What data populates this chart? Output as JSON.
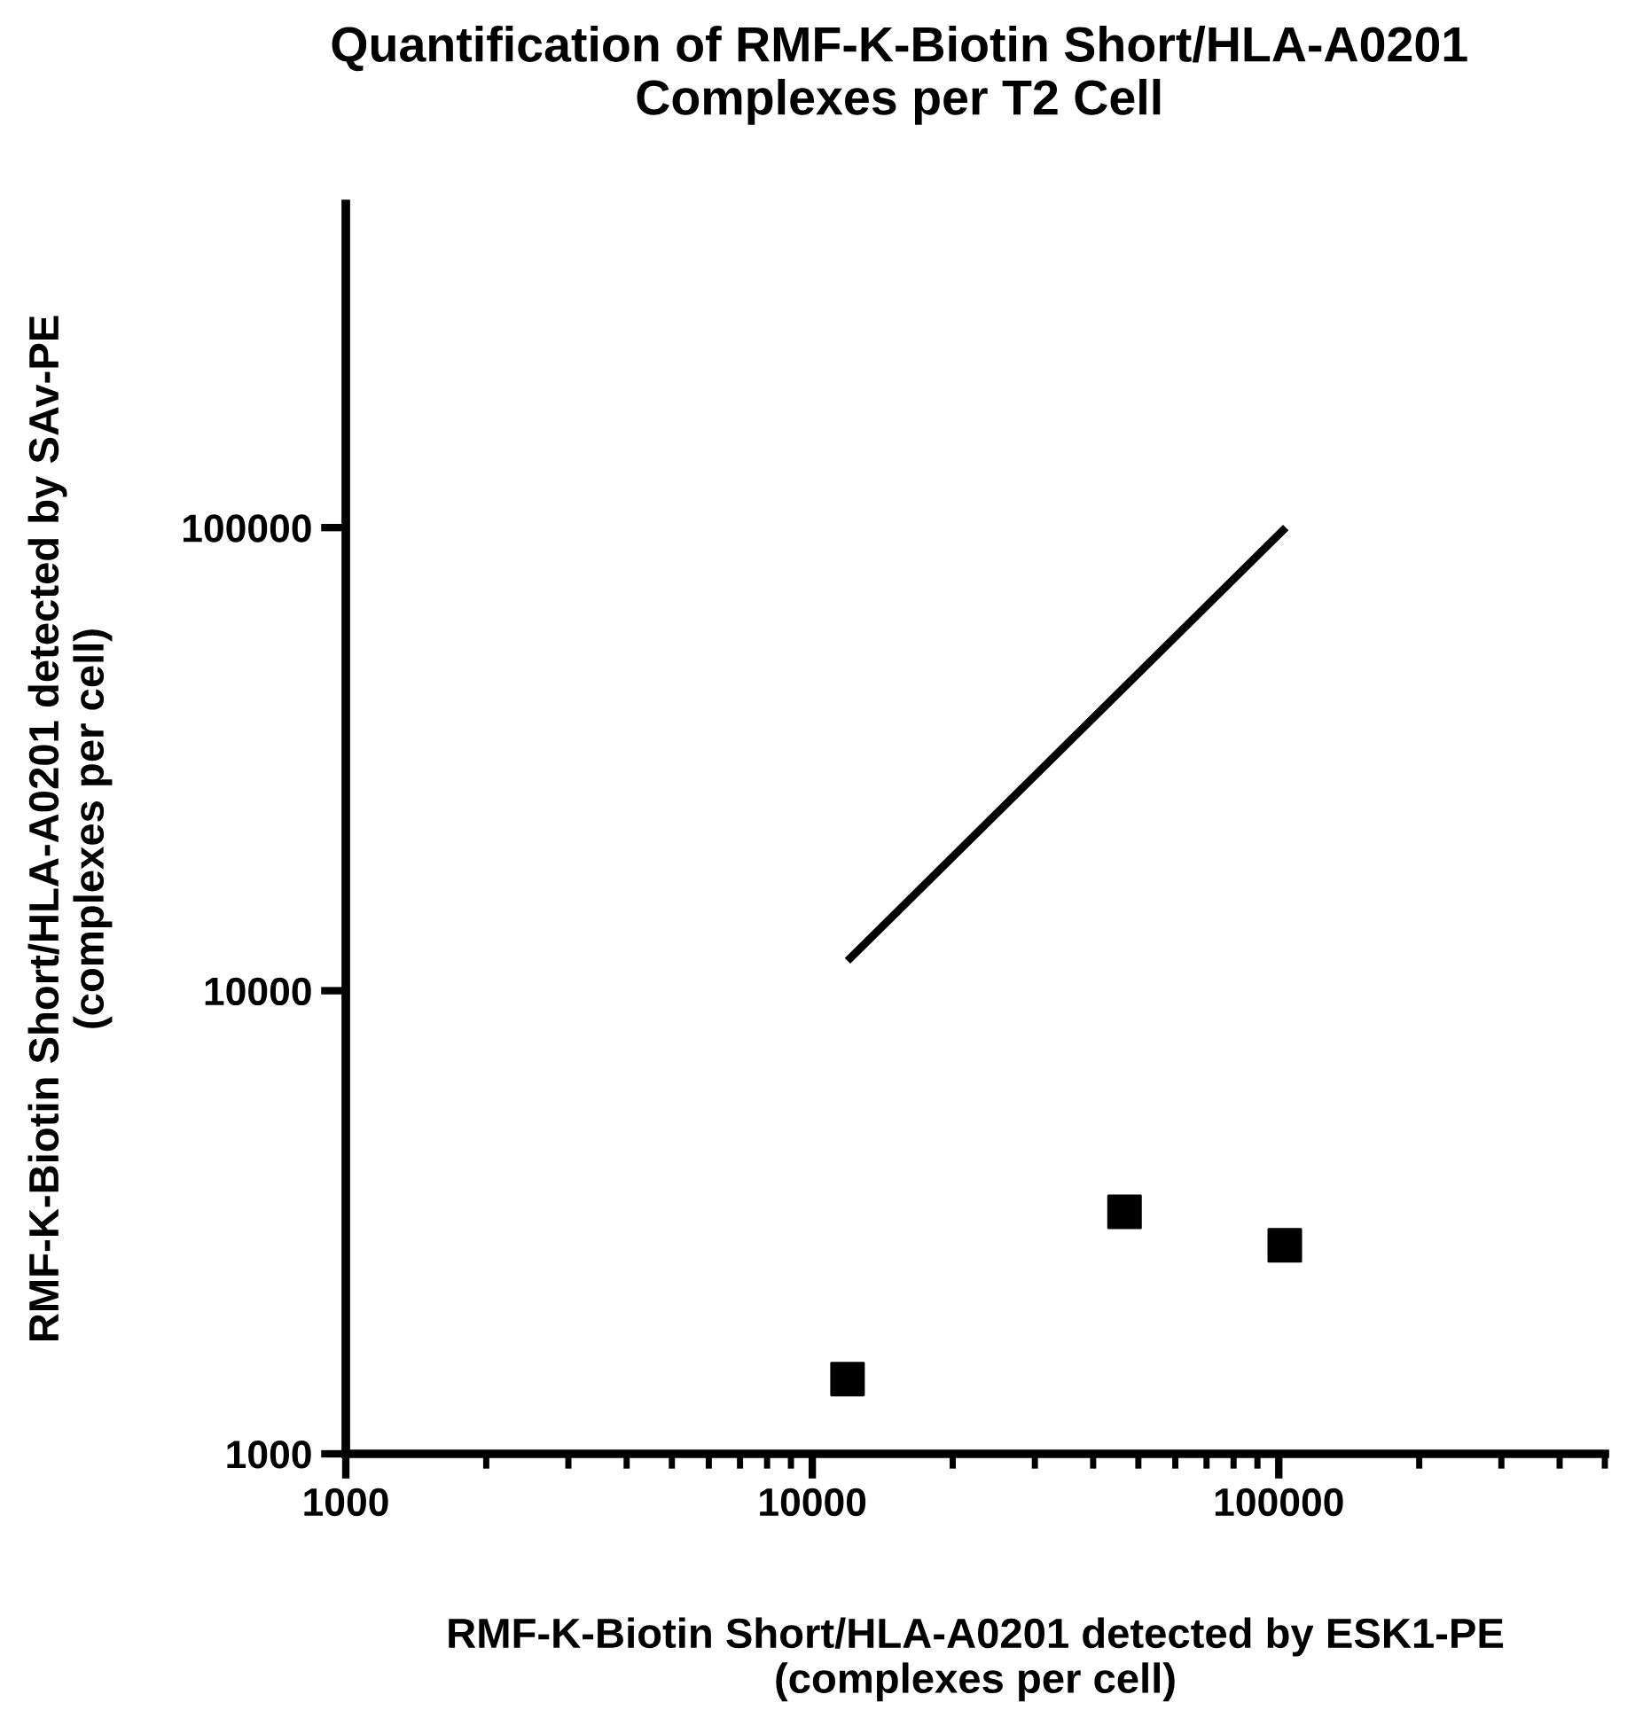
{
  "chart_data": {
    "type": "scatter",
    "title": "Quantification of RMF-K-Biotin Short/HLA-A0201\nComplexes per T2 Cell",
    "xlabel": "RMF-K-Biotin Short/HLA-A0201 detected by ESK1-PE\n(complexes per cell)",
    "ylabel": "RMF-K-Biotin Short/HLA-A0201 detected by SAv-PE\n(complexes per cell)",
    "log": "xy",
    "xlim": [
      1000,
      500000
    ],
    "ylim": [
      1000,
      500000
    ],
    "xticks": [
      1000,
      10000,
      100000
    ],
    "yticks": [
      1000,
      10000,
      100000
    ],
    "grid": false,
    "legend": false,
    "series": [
      {
        "type": "scatter",
        "marker": "square",
        "color": "#000000",
        "x": [
          11900,
          46700,
          103000
        ],
        "values": [
          1450,
          3330,
          2820
        ]
      },
      {
        "type": "line",
        "marker": "none",
        "line_style": "solid",
        "color": "#000000",
        "x": [
          11900,
          103500
        ],
        "values": [
          11600,
          100000
        ]
      }
    ]
  }
}
